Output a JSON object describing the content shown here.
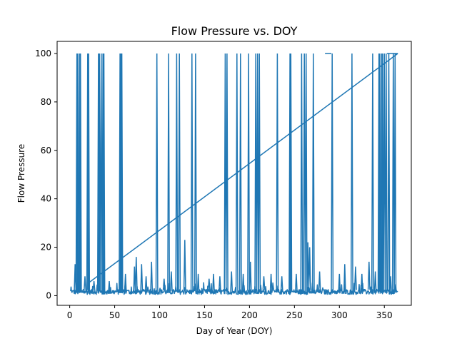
{
  "chart_data": {
    "type": "line",
    "title": "Flow Pressure vs. DOY",
    "xlabel": "Day of Year (DOY)",
    "ylabel": "Flow Pressure",
    "xlim": [
      -14,
      380
    ],
    "ylim": [
      -4,
      105
    ],
    "xticks": [
      0,
      50,
      100,
      150,
      200,
      250,
      300,
      350
    ],
    "yticks": [
      0,
      20,
      40,
      60,
      80,
      100
    ],
    "grid": false,
    "series_color": "#1f77b4",
    "baseline": {
      "x_start": 1,
      "x_end": 365,
      "typical_low": 0.5,
      "typical_high": 4
    },
    "spikes": [
      {
        "x": 6,
        "y": 13
      },
      {
        "x": 8,
        "y": 100
      },
      {
        "x": 9,
        "y": 100
      },
      {
        "x": 11,
        "y": 100
      },
      {
        "x": 12,
        "y": 100
      },
      {
        "x": 17,
        "y": 8
      },
      {
        "x": 20,
        "y": 100
      },
      {
        "x": 21,
        "y": 100
      },
      {
        "x": 27,
        "y": 6
      },
      {
        "x": 32,
        "y": 100
      },
      {
        "x": 33,
        "y": 100
      },
      {
        "x": 35,
        "y": 100
      },
      {
        "x": 37,
        "y": 100
      },
      {
        "x": 38,
        "y": 100
      },
      {
        "x": 44,
        "y": 6
      },
      {
        "x": 56,
        "y": 100
      },
      {
        "x": 57,
        "y": 100
      },
      {
        "x": 58,
        "y": 100
      },
      {
        "x": 62,
        "y": 9
      },
      {
        "x": 72,
        "y": 12
      },
      {
        "x": 74,
        "y": 16
      },
      {
        "x": 80,
        "y": 13
      },
      {
        "x": 85,
        "y": 8
      },
      {
        "x": 91,
        "y": 14
      },
      {
        "x": 97,
        "y": 100
      },
      {
        "x": 105,
        "y": 7
      },
      {
        "x": 110,
        "y": 100
      },
      {
        "x": 113,
        "y": 10
      },
      {
        "x": 119,
        "y": 100
      },
      {
        "x": 122,
        "y": 100
      },
      {
        "x": 128,
        "y": 23
      },
      {
        "x": 136,
        "y": 100
      },
      {
        "x": 140,
        "y": 100
      },
      {
        "x": 143,
        "y": 9
      },
      {
        "x": 155,
        "y": 7
      },
      {
        "x": 160,
        "y": 9
      },
      {
        "x": 167,
        "y": 8
      },
      {
        "x": 173,
        "y": 100
      },
      {
        "x": 175,
        "y": 100
      },
      {
        "x": 180,
        "y": 10
      },
      {
        "x": 186,
        "y": 100
      },
      {
        "x": 190,
        "y": 100
      },
      {
        "x": 193,
        "y": 9
      },
      {
        "x": 199,
        "y": 100
      },
      {
        "x": 201,
        "y": 14
      },
      {
        "x": 207,
        "y": 100
      },
      {
        "x": 209,
        "y": 100
      },
      {
        "x": 211,
        "y": 100
      },
      {
        "x": 216,
        "y": 8
      },
      {
        "x": 224,
        "y": 9
      },
      {
        "x": 231,
        "y": 100
      },
      {
        "x": 236,
        "y": 8
      },
      {
        "x": 245,
        "y": 100
      },
      {
        "x": 246,
        "y": 100
      },
      {
        "x": 252,
        "y": 9
      },
      {
        "x": 258,
        "y": 100
      },
      {
        "x": 261,
        "y": 100
      },
      {
        "x": 263,
        "y": 100
      },
      {
        "x": 265,
        "y": 22
      },
      {
        "x": 267,
        "y": 20
      },
      {
        "x": 271,
        "y": 100
      },
      {
        "x": 278,
        "y": 10
      },
      {
        "x": 292,
        "y": 100
      },
      {
        "x": 300,
        "y": 9
      },
      {
        "x": 306,
        "y": 13
      },
      {
        "x": 314,
        "y": 100
      },
      {
        "x": 318,
        "y": 12
      },
      {
        "x": 325,
        "y": 9
      },
      {
        "x": 333,
        "y": 14
      },
      {
        "x": 337,
        "y": 100
      },
      {
        "x": 340,
        "y": 10
      },
      {
        "x": 344,
        "y": 100
      },
      {
        "x": 345,
        "y": 100
      },
      {
        "x": 347,
        "y": 100
      },
      {
        "x": 348,
        "y": 100
      },
      {
        "x": 350,
        "y": 100
      },
      {
        "x": 352,
        "y": 100
      },
      {
        "x": 355,
        "y": 100
      },
      {
        "x": 357,
        "y": 8
      },
      {
        "x": 360,
        "y": 100
      },
      {
        "x": 362,
        "y": 100
      }
    ],
    "plateaus": [
      {
        "x_start": 284,
        "x_end": 291,
        "y": 100
      },
      {
        "x_start": 353,
        "x_end": 365,
        "y": 100
      }
    ],
    "wrap_segment": [
      {
        "x": 365,
        "y": 100
      },
      {
        "x": 20,
        "y": 5
      }
    ]
  }
}
